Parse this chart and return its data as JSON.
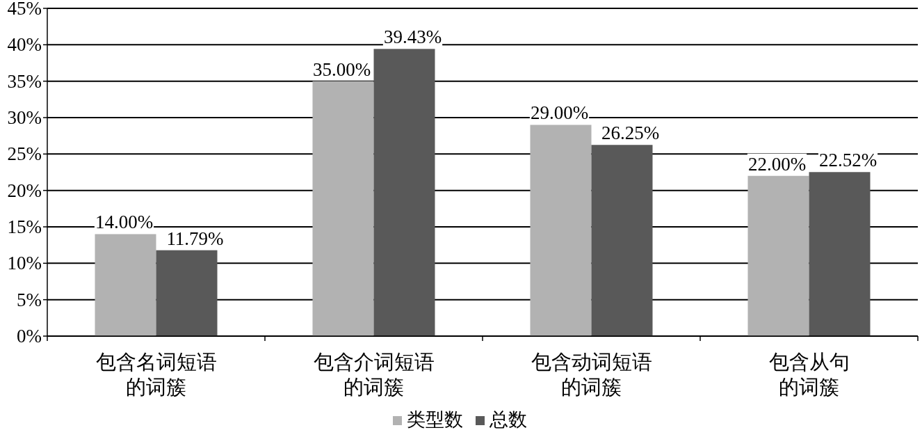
{
  "chart_data": {
    "type": "bar",
    "categories": [
      "包含名词短语的词簇",
      "包含介词短语的词簇",
      "包含动词短语的词簇",
      "包含从句的词簇"
    ],
    "series": [
      {
        "name": "类型数",
        "color": "#b2b2b2",
        "values": [
          14.0,
          35.0,
          29.0,
          22.0
        ],
        "value_labels": [
          "14.00%",
          "35.00%",
          "29.00%",
          "22.00%"
        ]
      },
      {
        "name": "总数",
        "color": "#595959",
        "values": [
          11.79,
          39.43,
          26.25,
          22.52
        ],
        "value_labels": [
          "11.79%",
          "39.43%",
          "26.25%",
          "22.52%"
        ]
      }
    ],
    "ylim": [
      0,
      45
    ],
    "yticks": [
      {
        "value": 0,
        "label": "0%"
      },
      {
        "value": 5,
        "label": "5%"
      },
      {
        "value": 10,
        "label": "10%"
      },
      {
        "value": 15,
        "label": "15%"
      },
      {
        "value": 20,
        "label": "20%"
      },
      {
        "value": 25,
        "label": "25%"
      },
      {
        "value": 30,
        "label": "30%"
      },
      {
        "value": 35,
        "label": "35%"
      },
      {
        "value": 40,
        "label": "40%"
      },
      {
        "value": 45,
        "label": "45%"
      }
    ],
    "grid": "y",
    "legend": "bottom"
  }
}
